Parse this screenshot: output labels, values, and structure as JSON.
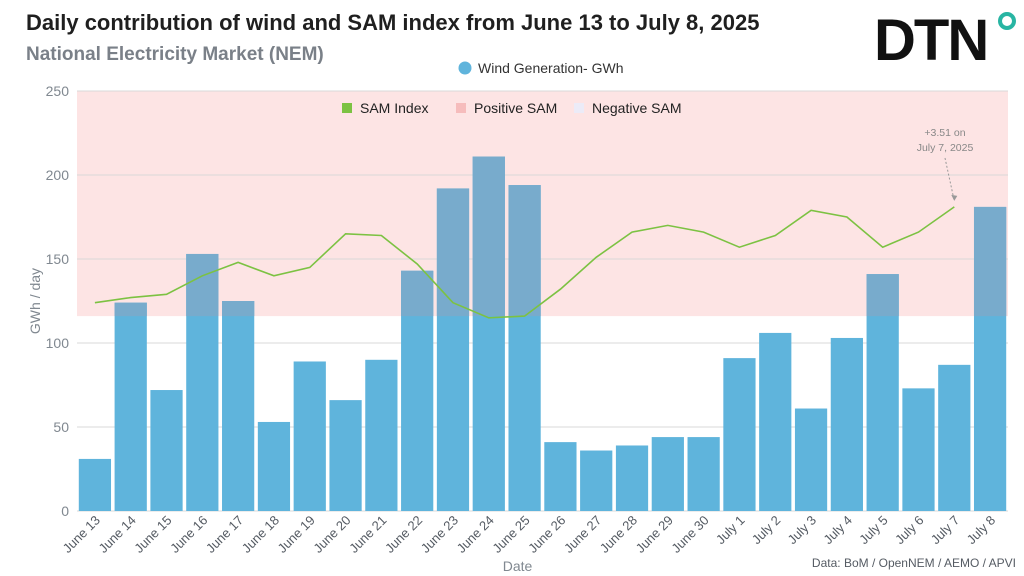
{
  "header": {
    "title": "Daily contribution of wind and SAM index from June 13 to July 8, 2025",
    "subtitle": "National Electricity Market (NEM)",
    "logo_text": "DTN",
    "source": "Data: BoM / OpenNEM / AEMO /  APVI"
  },
  "colors": {
    "bar": "#5fb4dc",
    "bar_in_band": "#78abcc",
    "line": "#7cc242",
    "positive_band": "#fde4e4",
    "negative_band": "#ecebf7",
    "axis_text": "#808890",
    "logo": "#111111",
    "logo_dot": "#28b5a3"
  },
  "chart_data": {
    "type": "bar",
    "xlabel": "Date",
    "ylabel": "GWh / day",
    "ylim": [
      0,
      250
    ],
    "yticks": [
      0,
      50,
      100,
      150,
      200,
      250
    ],
    "grid": true,
    "categories": [
      "June 13",
      "June 14",
      "June 15",
      "June 16",
      "June 17",
      "June 18",
      "June 19",
      "June 20",
      "June 21",
      "June 22",
      "June 23",
      "June 24",
      "June 25",
      "June 26",
      "June 27",
      "June 28",
      "June 29",
      "June 30",
      "July 1",
      "July 2",
      "July 3",
      "July 4",
      "July 5",
      "July 6",
      "July 7",
      "July 8"
    ],
    "series": [
      {
        "name": "Wind Generation- GWh",
        "type": "bar",
        "values": [
          31,
          124,
          72,
          153,
          125,
          53,
          89,
          66,
          90,
          143,
          192,
          211,
          194,
          41,
          36,
          39,
          44,
          44,
          91,
          106,
          61,
          103,
          141,
          73,
          87,
          181
        ]
      },
      {
        "name": "SAM Index",
        "type": "line",
        "values": [
          124,
          127,
          129,
          140,
          148,
          140,
          145,
          165,
          164,
          147,
          124,
          115,
          116,
          132,
          151,
          166,
          170,
          166,
          157,
          164,
          179,
          175,
          157,
          166,
          181,
          null
        ]
      }
    ],
    "positive_sam_band": [
      116,
      250
    ],
    "band_legend": [
      "SAM Index",
      "Positive SAM",
      "Negative SAM"
    ],
    "annotation": {
      "lines": [
        "+3.51 on",
        "July 7, 2025"
      ],
      "category": "July 7"
    }
  }
}
